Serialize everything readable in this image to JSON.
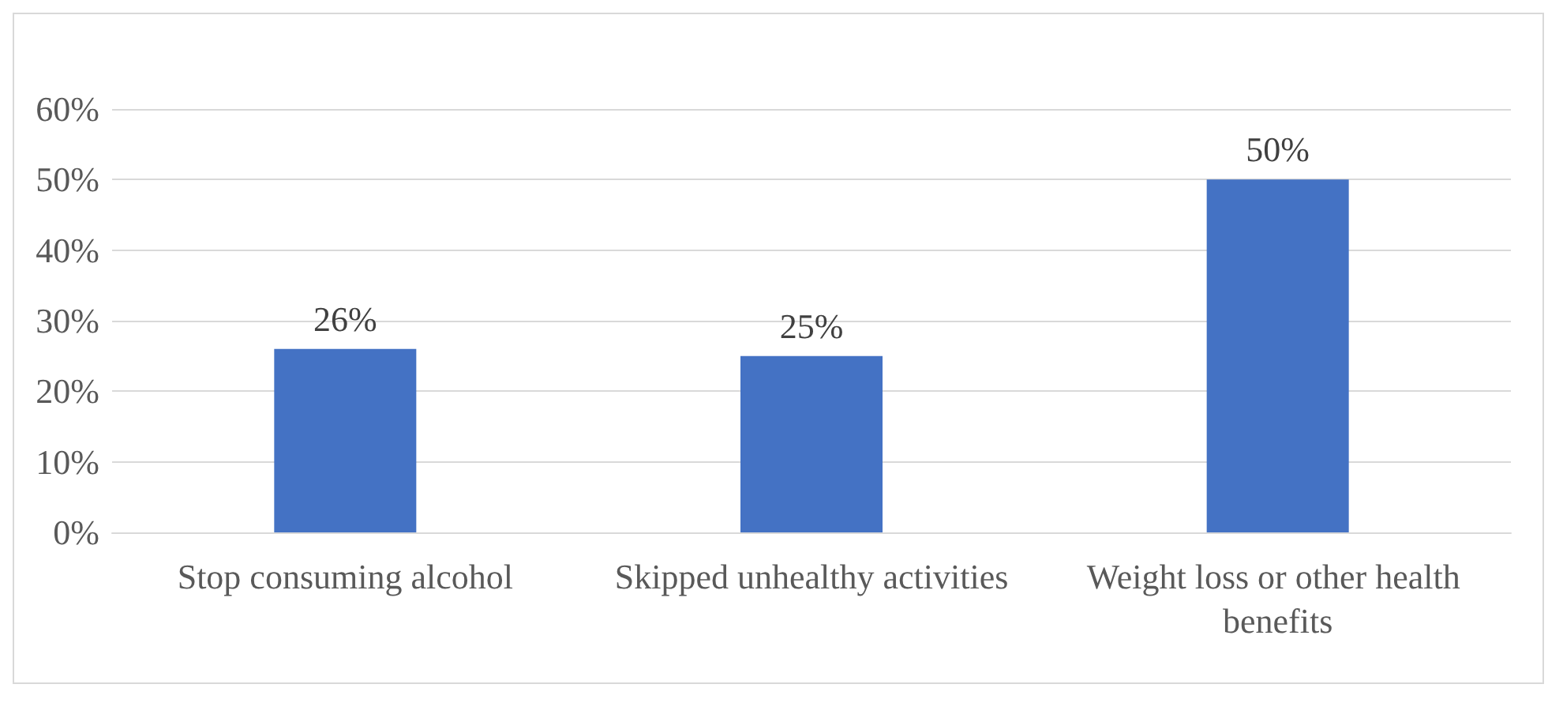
{
  "chart_data": {
    "type": "bar",
    "categories": [
      "Stop consuming alcohol",
      "Skipped unhealthy activities",
      "Weight loss or other health benefits"
    ],
    "values": [
      26,
      25,
      50
    ],
    "value_labels": [
      "26%",
      "25%",
      "50%"
    ],
    "color": "#4472c4",
    "ylim": [
      0,
      60
    ],
    "yticks": [
      {
        "value": 0,
        "label": "0%"
      },
      {
        "value": 10,
        "label": "10%"
      },
      {
        "value": 20,
        "label": "20%"
      },
      {
        "value": 30,
        "label": "30%"
      },
      {
        "value": 40,
        "label": "40%"
      },
      {
        "value": 50,
        "label": "50%"
      },
      {
        "value": 60,
        "label": "60%"
      }
    ],
    "grid": "y"
  }
}
